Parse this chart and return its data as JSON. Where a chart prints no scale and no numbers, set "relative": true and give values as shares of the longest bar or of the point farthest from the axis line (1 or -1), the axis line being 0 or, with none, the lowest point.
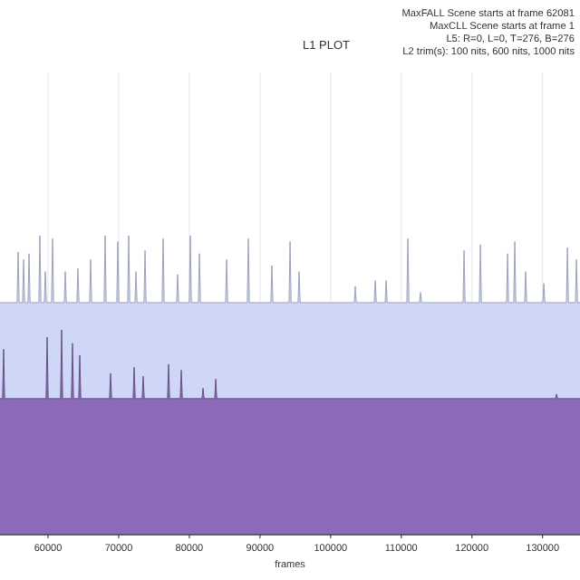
{
  "chart_data": {
    "type": "area",
    "title": "L1 PLOT",
    "xlabel": "frames",
    "relative": true,
    "grid": "x",
    "annotations": [
      "MaxFALL Scene starts at frame 62081",
      "MaxCLL Scene starts at frame 1",
      "L5: R=0, L=0, T=276, B=276",
      "L2 trim(s): 100 nits, 600 nits, 1000 nits"
    ],
    "xlim": [
      53200,
      135300
    ],
    "xticks": [
      60000,
      70000,
      80000,
      90000,
      100000,
      110000,
      120000,
      130000
    ],
    "series": [
      {
        "color": "#cfd7f6",
        "x": [
          53200,
          55620,
          55770,
          55920,
          56390,
          56540,
          56690,
          57160,
          57310,
          57460,
          58700,
          58850,
          59000,
          59470,
          59620,
          59770,
          60490,
          60640,
          60790,
          62290,
          62440,
          62590,
          64080,
          64230,
          64380,
          65880,
          66030,
          66180,
          67930,
          68080,
          68230,
          69730,
          69880,
          70030,
          71270,
          71420,
          71570,
          72300,
          72450,
          72600,
          73580,
          73730,
          73880,
          76140,
          76290,
          76440,
          78200,
          78350,
          78500,
          79990,
          80140,
          80290,
          81280,
          81430,
          81580,
          85130,
          85280,
          85430,
          88200,
          88350,
          88500,
          91540,
          91690,
          91840,
          94110,
          94260,
          94410,
          95390,
          95540,
          95690,
          103340,
          103490,
          103640,
          106170,
          106320,
          106470,
          107710,
          107860,
          108010,
          110790,
          110940,
          111090,
          112580,
          112730,
          112880,
          118740,
          118890,
          119040,
          121050,
          121200,
          121350,
          124900,
          125050,
          125200,
          125920,
          126070,
          126220,
          127460,
          127610,
          127760,
          130030,
          130180,
          130330,
          133370,
          133520,
          133670,
          134650,
          134800,
          134950,
          135300
        ],
        "values": [
          0.776,
          0.776,
          0.945,
          0.776,
          0.776,
          0.92,
          0.776,
          0.776,
          0.94,
          0.776,
          0.776,
          1.0,
          0.776,
          0.776,
          0.88,
          0.776,
          0.776,
          0.99,
          0.776,
          0.776,
          0.88,
          0.776,
          0.776,
          0.89,
          0.776,
          0.776,
          0.92,
          0.776,
          0.776,
          1.0,
          0.776,
          0.776,
          0.98,
          0.776,
          0.776,
          1.0,
          0.776,
          0.776,
          0.88,
          0.776,
          0.776,
          0.95,
          0.776,
          0.776,
          0.99,
          0.776,
          0.776,
          0.87,
          0.776,
          0.776,
          1.0,
          0.776,
          0.776,
          0.94,
          0.776,
          0.776,
          0.92,
          0.776,
          0.776,
          0.99,
          0.776,
          0.776,
          0.9,
          0.776,
          0.776,
          0.98,
          0.776,
          0.776,
          0.88,
          0.776,
          0.776,
          0.83,
          0.776,
          0.776,
          0.85,
          0.776,
          0.776,
          0.85,
          0.776,
          0.776,
          0.99,
          0.776,
          0.776,
          0.81,
          0.776,
          0.776,
          0.95,
          0.776,
          0.776,
          0.97,
          0.776,
          0.776,
          0.94,
          0.776,
          0.776,
          0.98,
          0.776,
          0.776,
          0.88,
          0.776,
          0.776,
          0.84,
          0.776,
          0.776,
          0.96,
          0.776,
          0.776,
          0.92,
          0.776,
          0.776
        ]
      },
      {
        "color": "#8c6bb8",
        "x": [
          53200,
          53560,
          53710,
          53860,
          59720,
          59870,
          60020,
          61770,
          61920,
          62070,
          63310,
          63460,
          63610,
          64340,
          64490,
          64640,
          68700,
          68850,
          69000,
          72040,
          72190,
          72340,
          73320,
          73470,
          73620,
          76910,
          77060,
          77210,
          78710,
          78860,
          79010,
          81790,
          81940,
          82090,
          83590,
          83740,
          83890,
          131830,
          131980,
          132130,
          135300
        ],
        "values": [
          0.455,
          0.455,
          0.62,
          0.455,
          0.455,
          0.66,
          0.455,
          0.455,
          0.685,
          0.455,
          0.455,
          0.64,
          0.455,
          0.455,
          0.6,
          0.455,
          0.455,
          0.54,
          0.455,
          0.455,
          0.56,
          0.455,
          0.455,
          0.53,
          0.455,
          0.455,
          0.57,
          0.455,
          0.455,
          0.55,
          0.455,
          0.455,
          0.49,
          0.455,
          0.455,
          0.52,
          0.455,
          0.455,
          0.47,
          0.455,
          0.455
        ]
      }
    ]
  }
}
